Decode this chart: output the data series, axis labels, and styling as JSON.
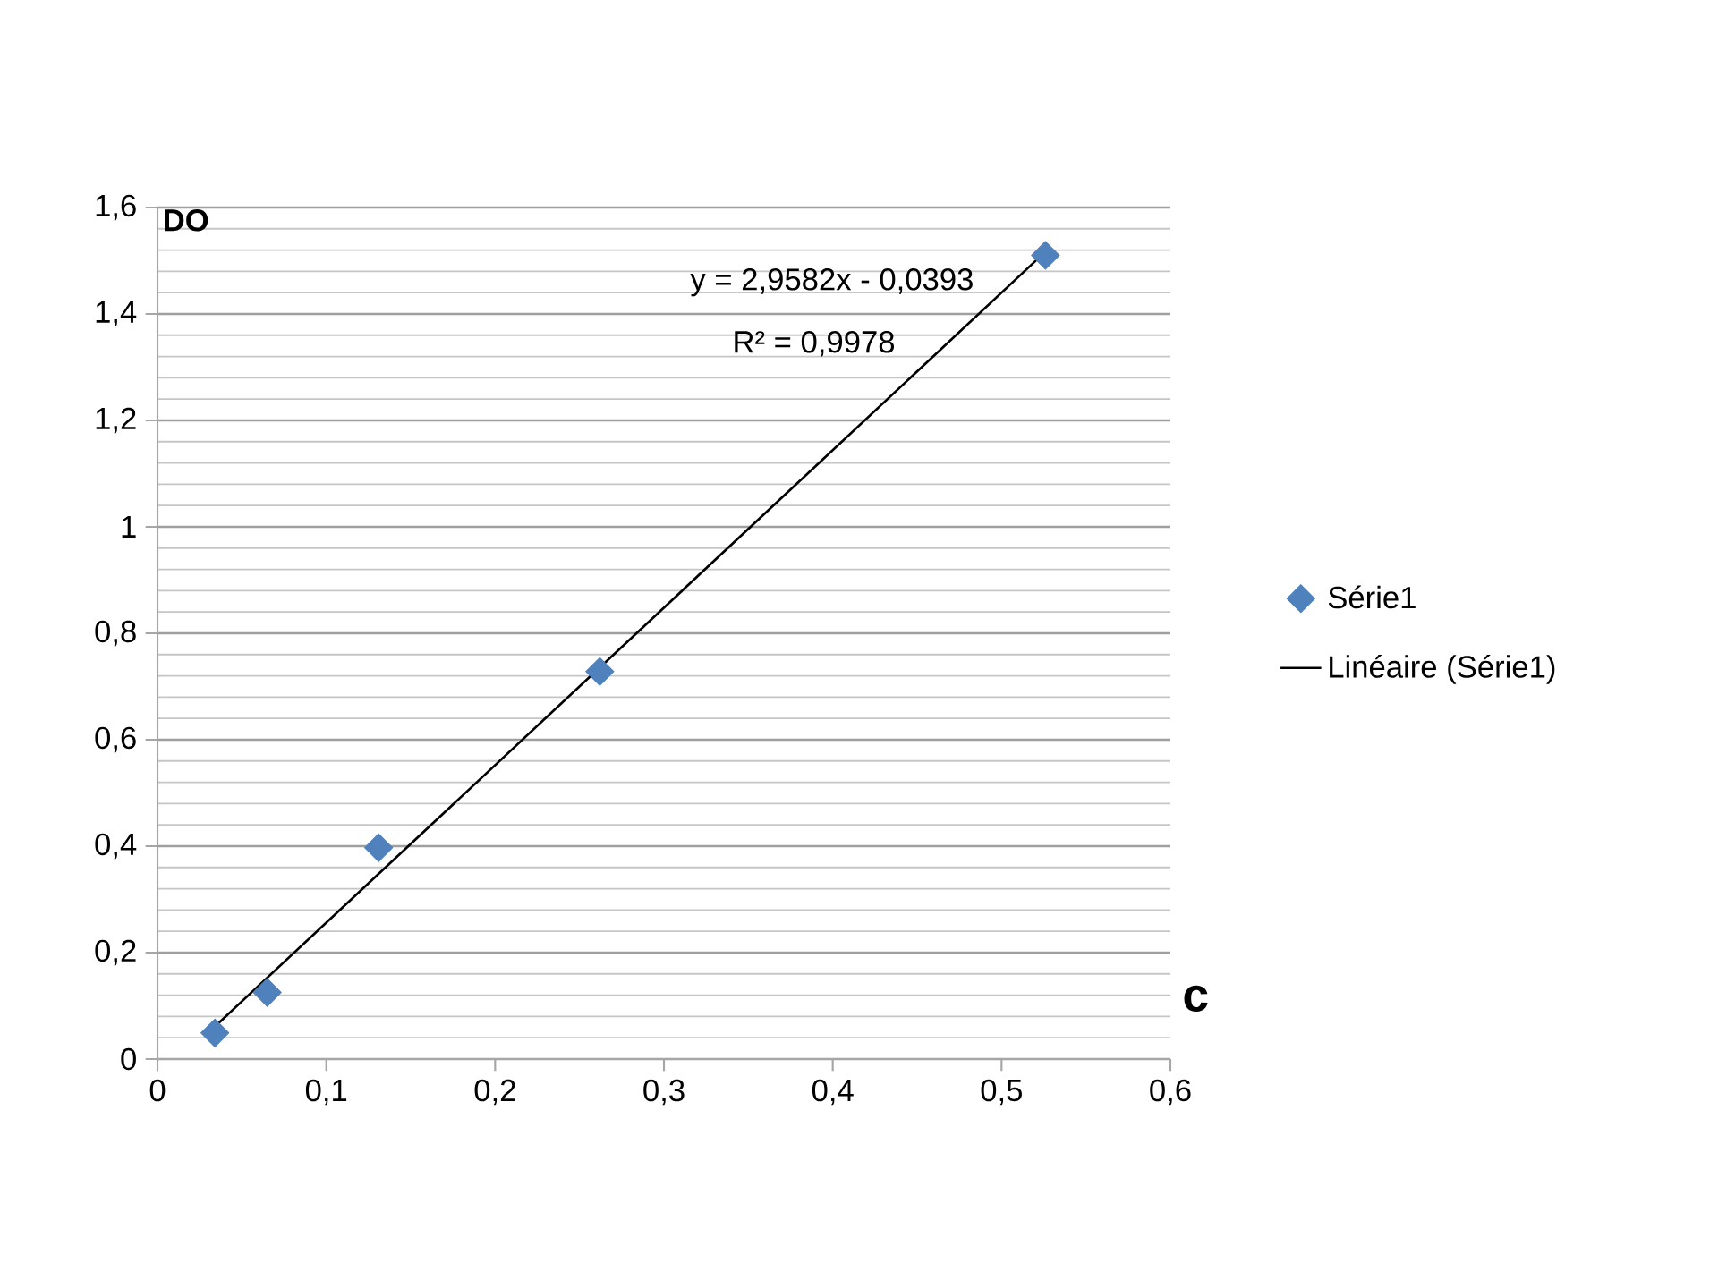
{
  "chart_data": {
    "type": "scatter",
    "xlabel": "c",
    "ylabel": "DO",
    "xlim": [
      0,
      0.6
    ],
    "ylim": [
      0,
      1.6
    ],
    "xticks": [
      0,
      {
        "value": 0.1,
        "label": "0,1"
      },
      {
        "value": 0.2,
        "label": "0,2"
      },
      {
        "value": 0.3,
        "label": "0,3"
      },
      {
        "value": 0.4,
        "label": "0,4"
      },
      {
        "value": 0.5,
        "label": "0,5"
      },
      {
        "value": 0.6,
        "label": "0,6"
      }
    ],
    "yticks": [
      0,
      {
        "value": 0.2,
        "label": "0,2"
      },
      {
        "value": 0.4,
        "label": "0,4"
      },
      {
        "value": 0.6,
        "label": "0,6"
      },
      {
        "value": 0.8,
        "label": "0,8"
      },
      1,
      {
        "value": 1.2,
        "label": "1,2"
      },
      {
        "value": 1.4,
        "label": "1,4"
      },
      {
        "value": 1.6,
        "label": "1,6"
      }
    ],
    "grid": "y",
    "legend": "right",
    "series": [
      {
        "name": "Série1",
        "marker": "diamond",
        "color": "#4f81bd",
        "x": [
          0.034,
          0.065,
          0.131,
          0.262,
          0.526
        ],
        "values": [
          0.049,
          0.125,
          0.397,
          0.728,
          1.51
        ]
      },
      {
        "name": "Linéaire (Série1)",
        "type": "line",
        "color": "#000000",
        "x": [
          0.033,
          0.525
        ],
        "values": [
          0.058,
          1.514
        ]
      }
    ],
    "annotations": [
      "y = 2,9582x - 0,0393",
      "R² = 0,9978"
    ]
  }
}
